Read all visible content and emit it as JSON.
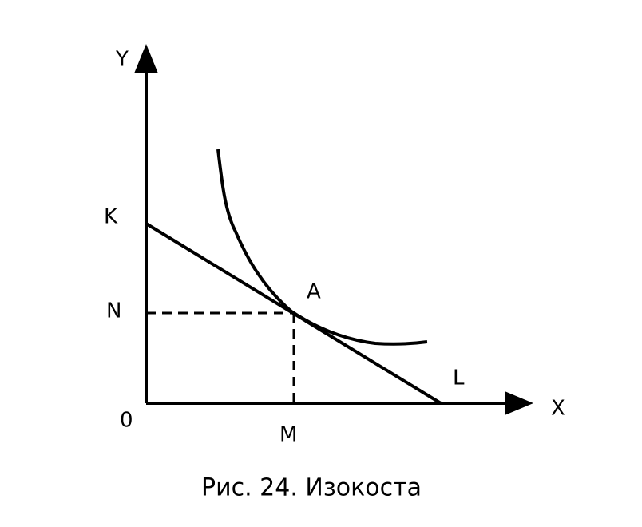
{
  "diagram": {
    "axes": {
      "y_label": "Y",
      "x_label": "X",
      "origin_label": "0"
    },
    "points": {
      "k": "K",
      "n": "N",
      "m": "M",
      "a": "A",
      "l": "L"
    },
    "caption": "Рис. 24. Изокоста"
  }
}
